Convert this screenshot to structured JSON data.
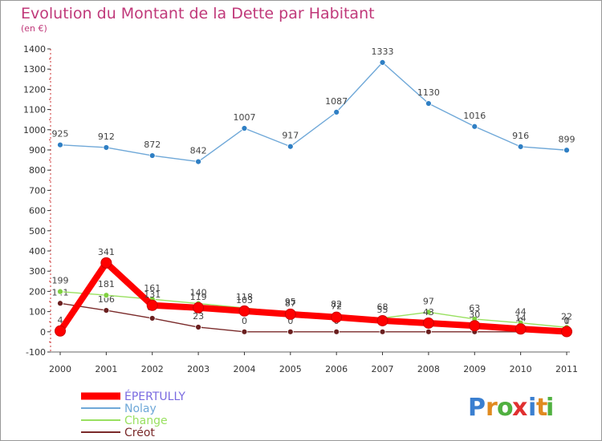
{
  "chart_data": {
    "type": "line",
    "title": "Evolution du Montant de la Dette par Habitant",
    "subtitle": "(en €)",
    "x": [
      "2000",
      "2001",
      "2002",
      "2003",
      "2004",
      "2005",
      "2006",
      "2007",
      "2008",
      "2009",
      "2010",
      "2011"
    ],
    "ylim": [
      -100,
      1400
    ],
    "yticks": [
      -100,
      0,
      100,
      200,
      300,
      400,
      500,
      600,
      700,
      800,
      900,
      1000,
      1100,
      1200,
      1300,
      1400
    ],
    "grid": false,
    "legend_position": "bottom-left",
    "series": [
      {
        "name": "ÉPERTULLY",
        "color": "#ff0000",
        "marker": "#ff0000",
        "values": [
          4,
          341,
          131,
          119,
          103,
          87,
          72,
          55,
          43,
          30,
          14,
          1
        ],
        "labels": [
          "4",
          "341",
          "131",
          "119",
          "103",
          "87",
          "72",
          "55",
          "43",
          "30",
          "14",
          "1"
        ]
      },
      {
        "name": "Nolay",
        "color": "#6fa8d8",
        "marker": "#2f7fc4",
        "values": [
          925,
          912,
          872,
          842,
          1007,
          917,
          1087,
          1333,
          1130,
          1016,
          916,
          899
        ],
        "labels": [
          "925",
          "912",
          "872",
          "842",
          "1007",
          "917",
          "1087",
          "1333",
          "1130",
          "1016",
          "916",
          "899"
        ]
      },
      {
        "name": "Change",
        "color": "#99e060",
        "marker": "#80d040",
        "values": [
          199,
          181,
          161,
          140,
          118,
          95,
          82,
          68,
          97,
          63,
          44,
          22
        ],
        "labels": [
          "199",
          "181",
          "161",
          "140",
          "118",
          "95",
          "82",
          "68",
          "97",
          "63",
          "44",
          "22"
        ]
      },
      {
        "name": "Créot",
        "color": "#7a2a2a",
        "marker": "#6a1f1f",
        "values": [
          141,
          106,
          67,
          23,
          0,
          0,
          0,
          0,
          0,
          0,
          0,
          0
        ],
        "labels": [
          "141",
          "106",
          "67",
          "23",
          "0",
          "0",
          "0",
          "0",
          "0",
          "0",
          "0",
          "0"
        ]
      }
    ]
  },
  "brand": {
    "letters": [
      "P",
      "r",
      "o",
      "x",
      "i",
      "t",
      "i"
    ],
    "colors": [
      "#3a7fd0",
      "#e08a20",
      "#50b040",
      "#e03030",
      "#3a7fd0",
      "#e08a20",
      "#50b040"
    ]
  }
}
